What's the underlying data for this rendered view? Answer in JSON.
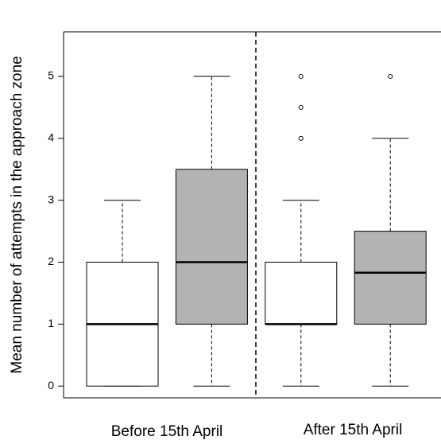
{
  "chart_data": {
    "type": "box",
    "y_label": "Mean number of attempts in the approach zone",
    "groups": [
      "Before 15th April",
      "After 15th April"
    ],
    "boxes": [
      {
        "min": 0,
        "q1": 0,
        "median": 1,
        "q3": 2,
        "max": 3,
        "outliers": [],
        "color": "#ffffff"
      },
      {
        "min": 0,
        "q1": 1,
        "median": 2,
        "q3": 3.5,
        "max": 5,
        "outliers": [],
        "color": "#b3b3b3"
      },
      {
        "min": 0,
        "q1": 1,
        "median": 1,
        "q3": 2,
        "max": 3,
        "outliers": [
          4,
          4.5,
          5
        ],
        "color": "#ffffff"
      },
      {
        "min": 0,
        "q1": 1,
        "median": 1.83,
        "q3": 2.5,
        "max": 4,
        "outliers": [
          5
        ],
        "color": "#b3b3b3"
      }
    ],
    "ylim": [
      -0.19,
      5.72
    ],
    "yticks": [
      0,
      1,
      2,
      3,
      4,
      5
    ]
  }
}
